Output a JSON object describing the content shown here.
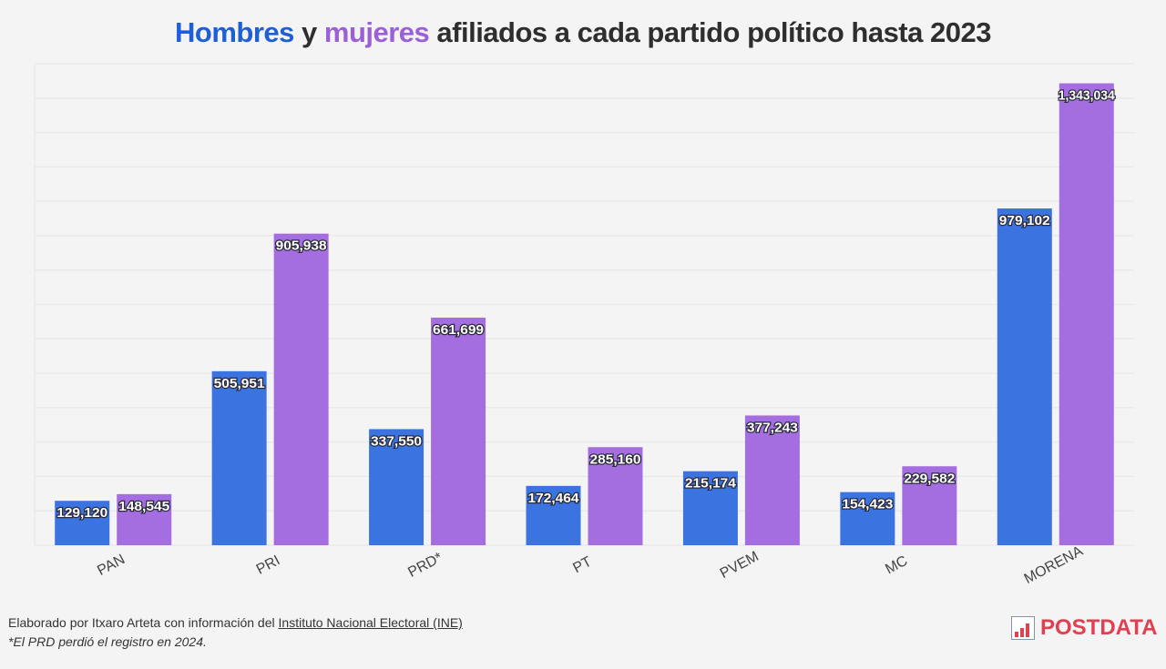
{
  "title": {
    "part1": "Hombres",
    "part2": " y ",
    "part3": "mujeres",
    "part4": " afiliados a cada partido político hasta 2023"
  },
  "footer": {
    "credit_prefix": "Elaborado por Itxaro Arteta con información del ",
    "credit_link": "Instituto Nacional Electoral (INE)",
    "note": "*El PRD perdió el registro en 2024."
  },
  "logo": {
    "text": "POSTDATA"
  },
  "colors": {
    "men": "#3b74e0",
    "women": "#a56ee0",
    "background": "#f4f4f4"
  },
  "chart_data": {
    "type": "bar",
    "title": "Hombres y mujeres afiliados a cada partido político hasta 2023",
    "xlabel": "",
    "ylabel": "",
    "ylim": [
      0,
      1400000
    ],
    "grid": true,
    "categories": [
      "PAN",
      "PRI",
      "PRD*",
      "PT",
      "PVEM",
      "MC",
      "MORENA"
    ],
    "series": [
      {
        "name": "Hombres",
        "values": [
          129120,
          505951,
          337550,
          172464,
          215174,
          154423,
          979102
        ],
        "labels": [
          "129,120",
          "505,951",
          "337,550",
          "172,464",
          "215,174",
          "154,423",
          "979,102"
        ]
      },
      {
        "name": "Mujeres",
        "values": [
          148545,
          905938,
          661699,
          285160,
          377243,
          229582,
          1343034
        ],
        "labels": [
          "148,545",
          "905,938",
          "661,699",
          "285,160",
          "377,243",
          "229,582",
          "1,343,034"
        ]
      }
    ]
  }
}
